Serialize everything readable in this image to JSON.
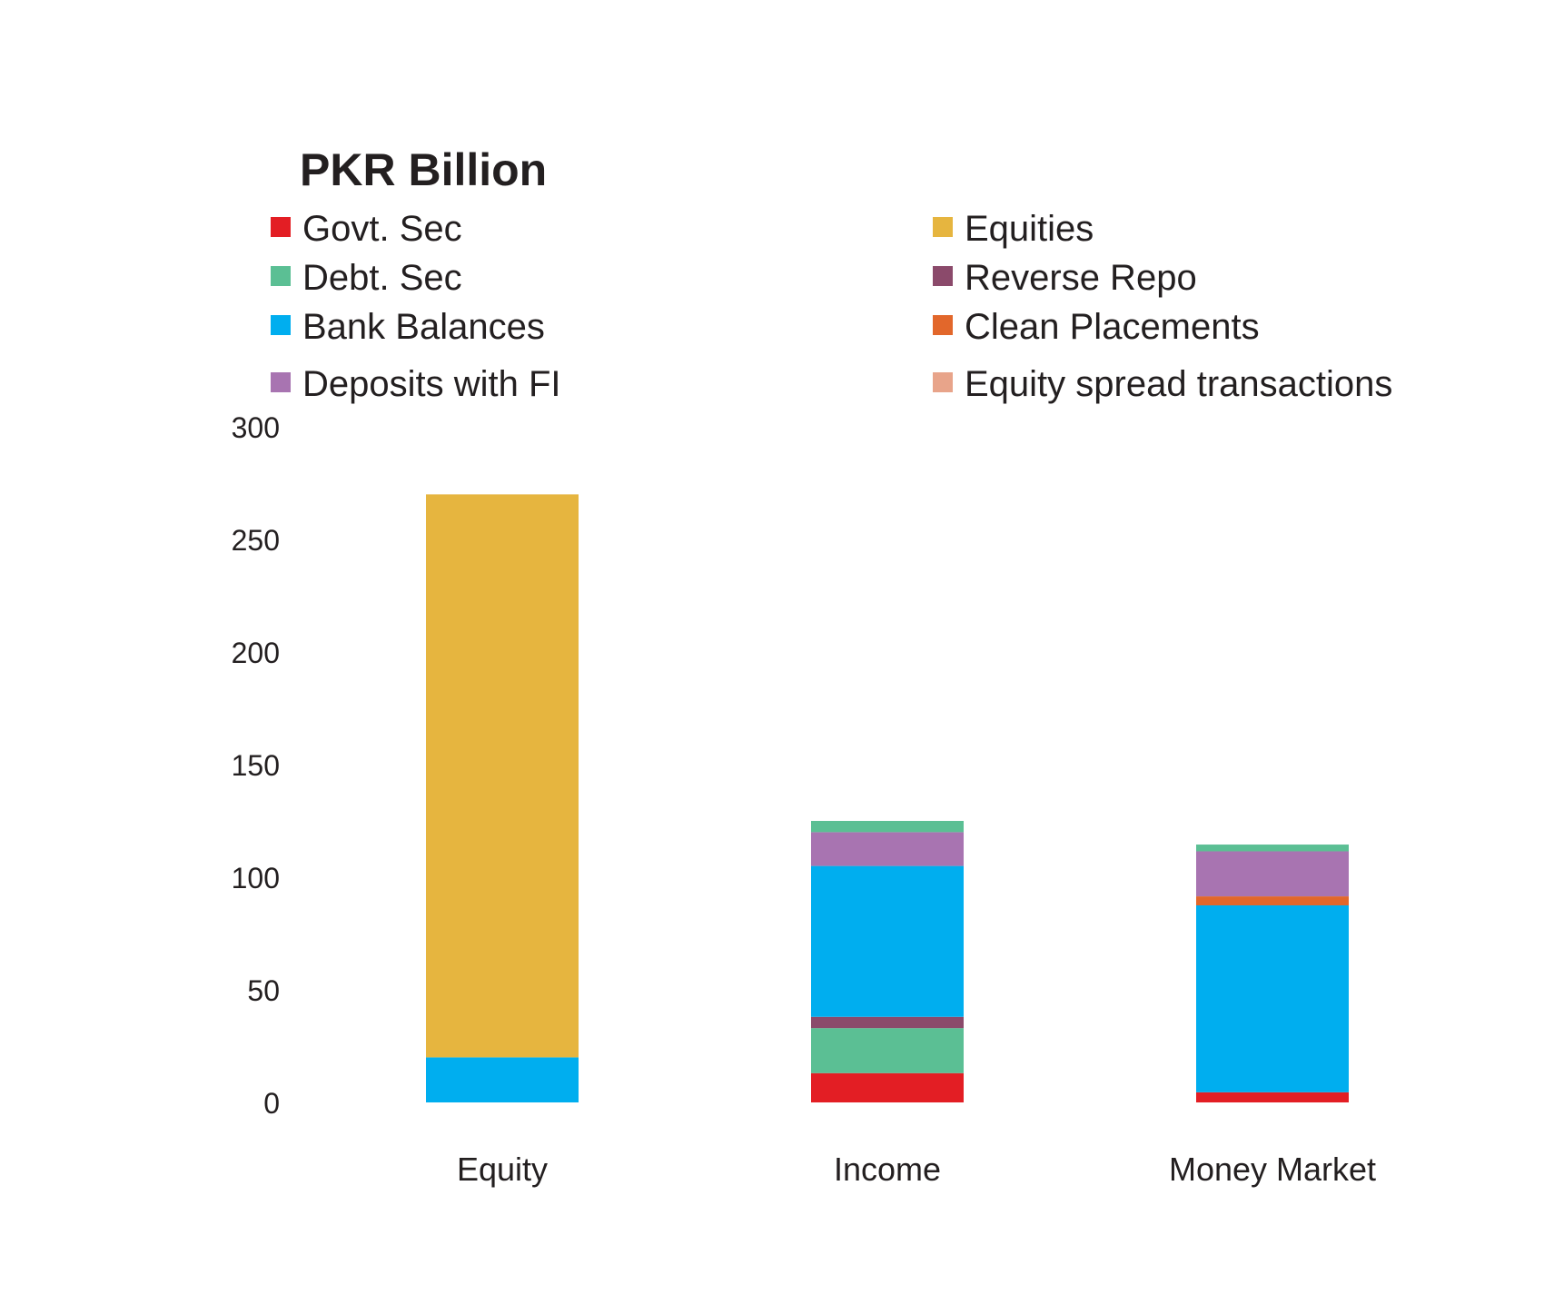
{
  "chart_data": {
    "type": "bar",
    "stacked": true,
    "title": "PKR Billion",
    "categories": [
      "Equity",
      "Income",
      "Money Market"
    ],
    "ylim": [
      0,
      300
    ],
    "yticks": [
      "0",
      "50",
      "100",
      "150",
      "200",
      "250",
      "300"
    ],
    "grid": false,
    "legend_position": "top",
    "series": [
      {
        "name": "Govt. Sec",
        "color": "#e31e24",
        "values": [
          0,
          13,
          4.5
        ]
      },
      {
        "name": "Debt. Sec",
        "color": "#5bbf94",
        "values": [
          0,
          20,
          0
        ]
      },
      {
        "name": "Reverse Repo",
        "color": "#8b4a6b",
        "values": [
          0,
          5,
          0
        ]
      },
      {
        "name": "Bank Balances",
        "color": "#00aeef",
        "values": [
          20,
          67,
          83
        ]
      },
      {
        "name": "Clean Placements",
        "color": "#e2672b",
        "values": [
          0,
          0,
          4
        ]
      },
      {
        "name": "Deposits with FI",
        "color": "#a874b1",
        "values": [
          0,
          15,
          20
        ]
      },
      {
        "name": "Debt. Sec",
        "color": "#5bbf94",
        "values": [
          0,
          5,
          3
        ]
      },
      {
        "name": "Equities",
        "color": "#e6b53f",
        "values": [
          250,
          0,
          0
        ]
      },
      {
        "name": "Equity spread transactions",
        "color": "#e8a48a",
        "values": [
          0,
          0,
          0
        ]
      }
    ],
    "legend": [
      {
        "name": "Govt. Sec",
        "color": "#e31e24"
      },
      {
        "name": "Debt. Sec",
        "color": "#5bbf94"
      },
      {
        "name": "Bank Balances",
        "color": "#00aeef"
      },
      {
        "name": "Deposits with FI",
        "color": "#a874b1"
      },
      {
        "name": "Equities",
        "color": "#e6b53f"
      },
      {
        "name": "Reverse Repo",
        "color": "#8b4a6b"
      },
      {
        "name": "Clean Placements",
        "color": "#e2672b"
      },
      {
        "name": "Equity spread transactions",
        "color": "#e8a48a"
      }
    ]
  }
}
